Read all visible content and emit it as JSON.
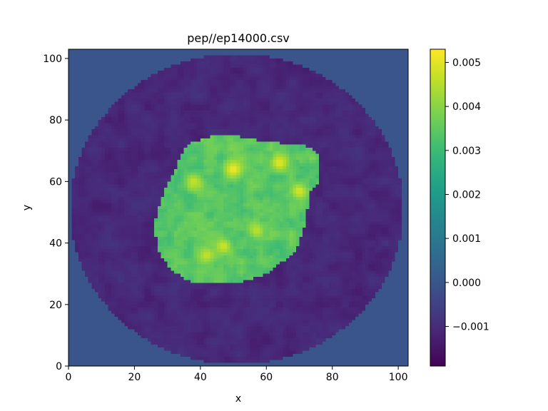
{
  "chart_data": {
    "type": "heatmap",
    "title": "pep//ep14000.csv",
    "xlabel": "x",
    "ylabel": "y",
    "xlim": [
      0,
      103
    ],
    "ylim": [
      0,
      103
    ],
    "x_ticks": [
      0,
      20,
      40,
      60,
      80,
      100
    ],
    "y_ticks": [
      0,
      20,
      40,
      60,
      80,
      100
    ],
    "grid": false,
    "colormap": "viridis",
    "colorbar": {
      "vmin": -0.0019,
      "vmax": 0.0053,
      "ticks": [
        -0.001,
        0.0,
        0.001,
        0.002,
        0.003,
        0.004,
        0.005
      ],
      "tick_labels": [
        "−0.001",
        "0.000",
        "0.001",
        "0.002",
        "0.003",
        "0.004",
        "0.005"
      ]
    },
    "field": {
      "grid_size": 103,
      "background_value": 0.0,
      "disk": {
        "center": [
          51,
          51
        ],
        "radius": 50.5,
        "base_value": -0.0011,
        "noise_amplitude": 0.0006
      },
      "blob": {
        "vertices": [
          [
            31,
            61
          ],
          [
            36,
            72
          ],
          [
            46,
            75.5
          ],
          [
            60,
            73
          ],
          [
            72,
            71.5
          ],
          [
            76,
            69
          ],
          [
            76,
            59
          ],
          [
            73,
            56
          ],
          [
            72,
            46
          ],
          [
            69,
            37
          ],
          [
            60,
            30
          ],
          [
            50,
            26.5
          ],
          [
            38,
            27
          ],
          [
            31,
            31
          ],
          [
            27,
            38
          ],
          [
            26,
            46
          ],
          [
            28,
            54
          ]
        ],
        "base_value": 0.0034,
        "noise_amplitude": 0.0011,
        "hotspots": [
          [
            50,
            64,
            0.0052
          ],
          [
            64,
            66,
            0.005
          ],
          [
            70,
            57,
            0.0049
          ],
          [
            47,
            39,
            0.0048
          ],
          [
            38,
            60,
            0.0047
          ],
          [
            57,
            44,
            0.0046
          ],
          [
            42,
            36,
            0.0047
          ]
        ]
      }
    }
  }
}
